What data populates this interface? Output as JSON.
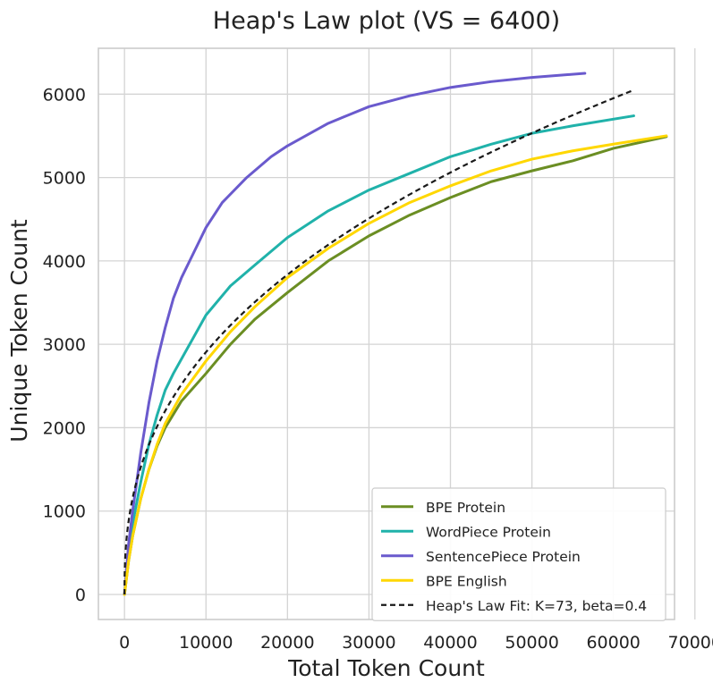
{
  "chart_data": {
    "type": "line",
    "title": "Heap's Law plot (VS = 6400)",
    "xlabel": "Total Token Count",
    "ylabel": "Unique Token Count",
    "xlim": [
      -3200,
      67500
    ],
    "ylim": [
      -300,
      6550
    ],
    "xticks": [
      0,
      10000,
      20000,
      30000,
      40000,
      50000,
      60000,
      70000
    ],
    "xtick_labels": [
      "0",
      "10000",
      "20000",
      "30000",
      "40000",
      "50000",
      "60000",
      "70000"
    ],
    "yticks": [
      0,
      1000,
      2000,
      3000,
      4000,
      5000,
      6000
    ],
    "ytick_labels": [
      "0",
      "1000",
      "2000",
      "3000",
      "4000",
      "5000",
      "6000"
    ],
    "grid": true,
    "legend_position": "bottom-right",
    "series": [
      {
        "name": "BPE Protein",
        "color": "#6b8e23",
        "style": "solid",
        "points": [
          [
            0,
            0
          ],
          [
            500,
            400
          ],
          [
            1000,
            700
          ],
          [
            2000,
            1150
          ],
          [
            3000,
            1500
          ],
          [
            4000,
            1780
          ],
          [
            5000,
            2000
          ],
          [
            7000,
            2320
          ],
          [
            10000,
            2650
          ],
          [
            13000,
            3000
          ],
          [
            16000,
            3300
          ],
          [
            20000,
            3620
          ],
          [
            25000,
            4000
          ],
          [
            30000,
            4300
          ],
          [
            35000,
            4550
          ],
          [
            40000,
            4760
          ],
          [
            45000,
            4950
          ],
          [
            50000,
            5080
          ],
          [
            55000,
            5200
          ],
          [
            60000,
            5350
          ],
          [
            66500,
            5490
          ]
        ]
      },
      {
        "name": "WordPiece Protein",
        "color": "#20b2aa",
        "style": "solid",
        "points": [
          [
            0,
            0
          ],
          [
            500,
            500
          ],
          [
            1000,
            850
          ],
          [
            2000,
            1350
          ],
          [
            3000,
            1800
          ],
          [
            4000,
            2150
          ],
          [
            5000,
            2450
          ],
          [
            6000,
            2650
          ],
          [
            8000,
            3000
          ],
          [
            10000,
            3350
          ],
          [
            13000,
            3700
          ],
          [
            16000,
            3950
          ],
          [
            20000,
            4280
          ],
          [
            25000,
            4600
          ],
          [
            30000,
            4850
          ],
          [
            35000,
            5050
          ],
          [
            40000,
            5250
          ],
          [
            45000,
            5400
          ],
          [
            50000,
            5530
          ],
          [
            55000,
            5620
          ],
          [
            62500,
            5740
          ]
        ]
      },
      {
        "name": "SentencePiece Protein",
        "color": "#6a5acd",
        "style": "solid",
        "points": [
          [
            0,
            0
          ],
          [
            500,
            600
          ],
          [
            1000,
            1000
          ],
          [
            2000,
            1700
          ],
          [
            3000,
            2300
          ],
          [
            4000,
            2800
          ],
          [
            5000,
            3200
          ],
          [
            6000,
            3550
          ],
          [
            7000,
            3800
          ],
          [
            8000,
            4000
          ],
          [
            10000,
            4400
          ],
          [
            12000,
            4700
          ],
          [
            15000,
            5000
          ],
          [
            18000,
            5250
          ],
          [
            20000,
            5380
          ],
          [
            25000,
            5650
          ],
          [
            30000,
            5850
          ],
          [
            35000,
            5980
          ],
          [
            40000,
            6080
          ],
          [
            45000,
            6150
          ],
          [
            50000,
            6200
          ],
          [
            56500,
            6250
          ]
        ]
      },
      {
        "name": "BPE English",
        "color": "#ffd700",
        "style": "solid",
        "points": [
          [
            0,
            0
          ],
          [
            500,
            400
          ],
          [
            1000,
            700
          ],
          [
            2000,
            1150
          ],
          [
            3000,
            1500
          ],
          [
            4000,
            1800
          ],
          [
            5000,
            2050
          ],
          [
            7000,
            2400
          ],
          [
            10000,
            2800
          ],
          [
            13000,
            3150
          ],
          [
            16000,
            3450
          ],
          [
            20000,
            3800
          ],
          [
            25000,
            4150
          ],
          [
            30000,
            4450
          ],
          [
            35000,
            4700
          ],
          [
            40000,
            4900
          ],
          [
            45000,
            5080
          ],
          [
            50000,
            5220
          ],
          [
            55000,
            5320
          ],
          [
            60000,
            5400
          ],
          [
            66500,
            5500
          ]
        ]
      },
      {
        "name": "Heap's Law Fit: K=73, beta=0.4",
        "color": "#1a1a1a",
        "style": "dashed",
        "K": 73,
        "beta": 0.4,
        "x_range": [
          0,
          62500
        ]
      }
    ]
  }
}
